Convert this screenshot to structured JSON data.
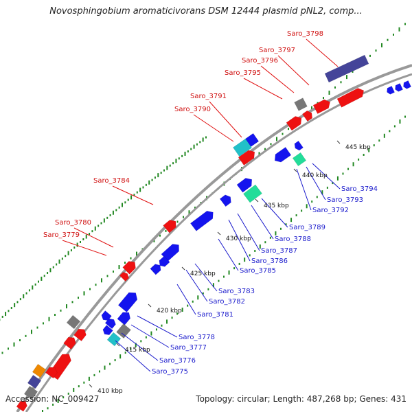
{
  "title": "Novosphingobium aromaticivorans DSM 12444 plasmid pNL2, comp...",
  "footer": {
    "accession": "Accession: NC_009427",
    "summary": "Topology: circular; Length: 487,268 bp; Genes: 431"
  },
  "colors": {
    "forward": "#ee1111",
    "reverse": "#1414ee",
    "gray": "#777777",
    "cyan": "#22c0c8",
    "teal": "#22dd99",
    "navy": "#444499",
    "orange": "#ee8800",
    "backbone": "#999999",
    "dot_green": "#228822"
  },
  "ticks": [
    "410 kbp",
    "415 kbp",
    "420 kbp",
    "425 kbp",
    "430 kbp",
    "435 kbp",
    "440 kbp",
    "445 kbp"
  ],
  "labels_forward": [
    "Saro_3798",
    "Saro_3797",
    "Saro_3796",
    "Saro_3795",
    "Saro_3791",
    "Saro_3790",
    "Saro_3784",
    "Saro_3780",
    "Saro_3779"
  ],
  "labels_reverse": [
    "Saro_3794",
    "Saro_3793",
    "Saro_3792",
    "Saro_3789",
    "Saro_3788",
    "Saro_3787",
    "Saro_3786",
    "Saro_3785",
    "Saro_3783",
    "Saro_3782",
    "Saro_3781",
    "Saro_3778",
    "Saro_3777",
    "Saro_3776",
    "Saro_3775"
  ]
}
